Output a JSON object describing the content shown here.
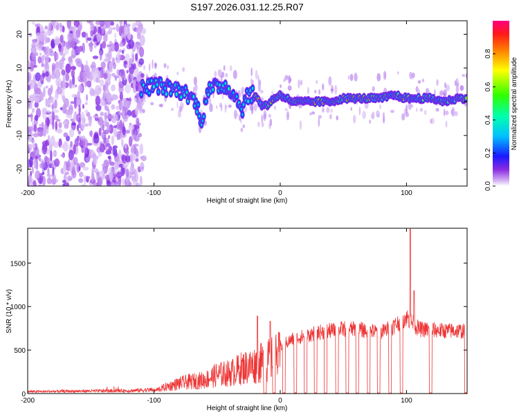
{
  "title": "S197.2026.031.12.25.R07",
  "chart_data": [
    {
      "type": "heatmap",
      "xlabel": "Height of straight line (km)",
      "ylabel": "Frequency (Hz)",
      "xlim": [
        -200,
        148
      ],
      "ylim": [
        -25,
        24
      ],
      "xticks": [
        -200,
        -100,
        0,
        100
      ],
      "yticks": [
        -20,
        -10,
        0,
        10,
        20
      ],
      "ridge": [
        {
          "x": -108,
          "y": 4
        },
        {
          "x": -98,
          "y": 5
        },
        {
          "x": -90,
          "y": 4
        },
        {
          "x": -85,
          "y": 4
        },
        {
          "x": -78,
          "y": 3
        },
        {
          "x": -72,
          "y": 2
        },
        {
          "x": -66,
          "y": -1
        },
        {
          "x": -62,
          "y": -6
        },
        {
          "x": -58,
          "y": 3
        },
        {
          "x": -52,
          "y": 4
        },
        {
          "x": -46,
          "y": 5
        },
        {
          "x": -40,
          "y": 4
        },
        {
          "x": -35,
          "y": 1
        },
        {
          "x": -30,
          "y": -2
        },
        {
          "x": -26,
          "y": 2
        },
        {
          "x": -20,
          "y": 2
        },
        {
          "x": -15,
          "y": -1
        },
        {
          "x": -10,
          "y": -1
        },
        {
          "x": -5,
          "y": 1
        },
        {
          "x": 0,
          "y": 2
        },
        {
          "x": 5,
          "y": 1
        },
        {
          "x": 10,
          "y": 0
        },
        {
          "x": 20,
          "y": 0
        },
        {
          "x": 30,
          "y": 0
        },
        {
          "x": 40,
          "y": 0
        },
        {
          "x": 50,
          "y": 1
        },
        {
          "x": 60,
          "y": 1
        },
        {
          "x": 70,
          "y": 1
        },
        {
          "x": 80,
          "y": 1
        },
        {
          "x": 90,
          "y": 2
        },
        {
          "x": 100,
          "y": 1
        },
        {
          "x": 110,
          "y": 1
        },
        {
          "x": 120,
          "y": 1
        },
        {
          "x": 130,
          "y": 0
        },
        {
          "x": 140,
          "y": 1
        },
        {
          "x": 148,
          "y": 1
        }
      ],
      "colorbar": {
        "label": "Normalized spectral amplitude",
        "range": [
          0,
          1
        ],
        "ticks": [
          "0.0",
          "0.2",
          "0.4",
          "0.6",
          "0.8"
        ]
      }
    },
    {
      "type": "line",
      "xlabel": "Height of straight line (km)",
      "ylabel": "SNR (10 * v/v)",
      "xlim": [
        -200,
        148
      ],
      "ylim": [
        0,
        1900
      ],
      "xticks": [
        -200,
        -100,
        0,
        100
      ],
      "yticks": [
        0,
        500,
        1000,
        1500
      ],
      "color": "#ee3333",
      "envelope": [
        {
          "x": -200,
          "y": 20
        },
        {
          "x": -160,
          "y": 25
        },
        {
          "x": -120,
          "y": 30
        },
        {
          "x": -100,
          "y": 40
        },
        {
          "x": -90,
          "y": 100
        },
        {
          "x": -80,
          "y": 150
        },
        {
          "x": -70,
          "y": 180
        },
        {
          "x": -60,
          "y": 200
        },
        {
          "x": -50,
          "y": 280
        },
        {
          "x": -40,
          "y": 300
        },
        {
          "x": -30,
          "y": 380
        },
        {
          "x": -20,
          "y": 420
        },
        {
          "x": -10,
          "y": 480
        },
        {
          "x": 0,
          "y": 560
        },
        {
          "x": 10,
          "y": 640
        },
        {
          "x": 20,
          "y": 680
        },
        {
          "x": 30,
          "y": 720
        },
        {
          "x": 40,
          "y": 740
        },
        {
          "x": 50,
          "y": 760
        },
        {
          "x": 60,
          "y": 760
        },
        {
          "x": 70,
          "y": 740
        },
        {
          "x": 80,
          "y": 720
        },
        {
          "x": 90,
          "y": 800
        },
        {
          "x": 100,
          "y": 900
        },
        {
          "x": 110,
          "y": 760
        },
        {
          "x": 120,
          "y": 750
        },
        {
          "x": 130,
          "y": 740
        },
        {
          "x": 140,
          "y": 740
        },
        {
          "x": 148,
          "y": 730
        }
      ],
      "peaks": [
        {
          "x": -18,
          "y": 890
        },
        {
          "x": -8,
          "y": 830
        },
        {
          "x": 103,
          "y": 1890
        },
        {
          "x": 106,
          "y": 1180
        }
      ],
      "dropouts": [
        {
          "x": -12,
          "y": 0
        },
        {
          "x": -5,
          "y": 0
        },
        {
          "x": 3,
          "y": 0
        },
        {
          "x": 12,
          "y": 0
        },
        {
          "x": 20,
          "y": 0
        },
        {
          "x": 28,
          "y": 0
        },
        {
          "x": 36,
          "y": 0
        },
        {
          "x": 45,
          "y": 0
        },
        {
          "x": 53,
          "y": 0
        },
        {
          "x": 61,
          "y": 0
        },
        {
          "x": 70,
          "y": 0
        },
        {
          "x": 78,
          "y": 0
        },
        {
          "x": 87,
          "y": 0
        },
        {
          "x": 96,
          "y": 0
        },
        {
          "x": 119,
          "y": 0
        },
        {
          "x": 147,
          "y": 0
        }
      ]
    }
  ]
}
